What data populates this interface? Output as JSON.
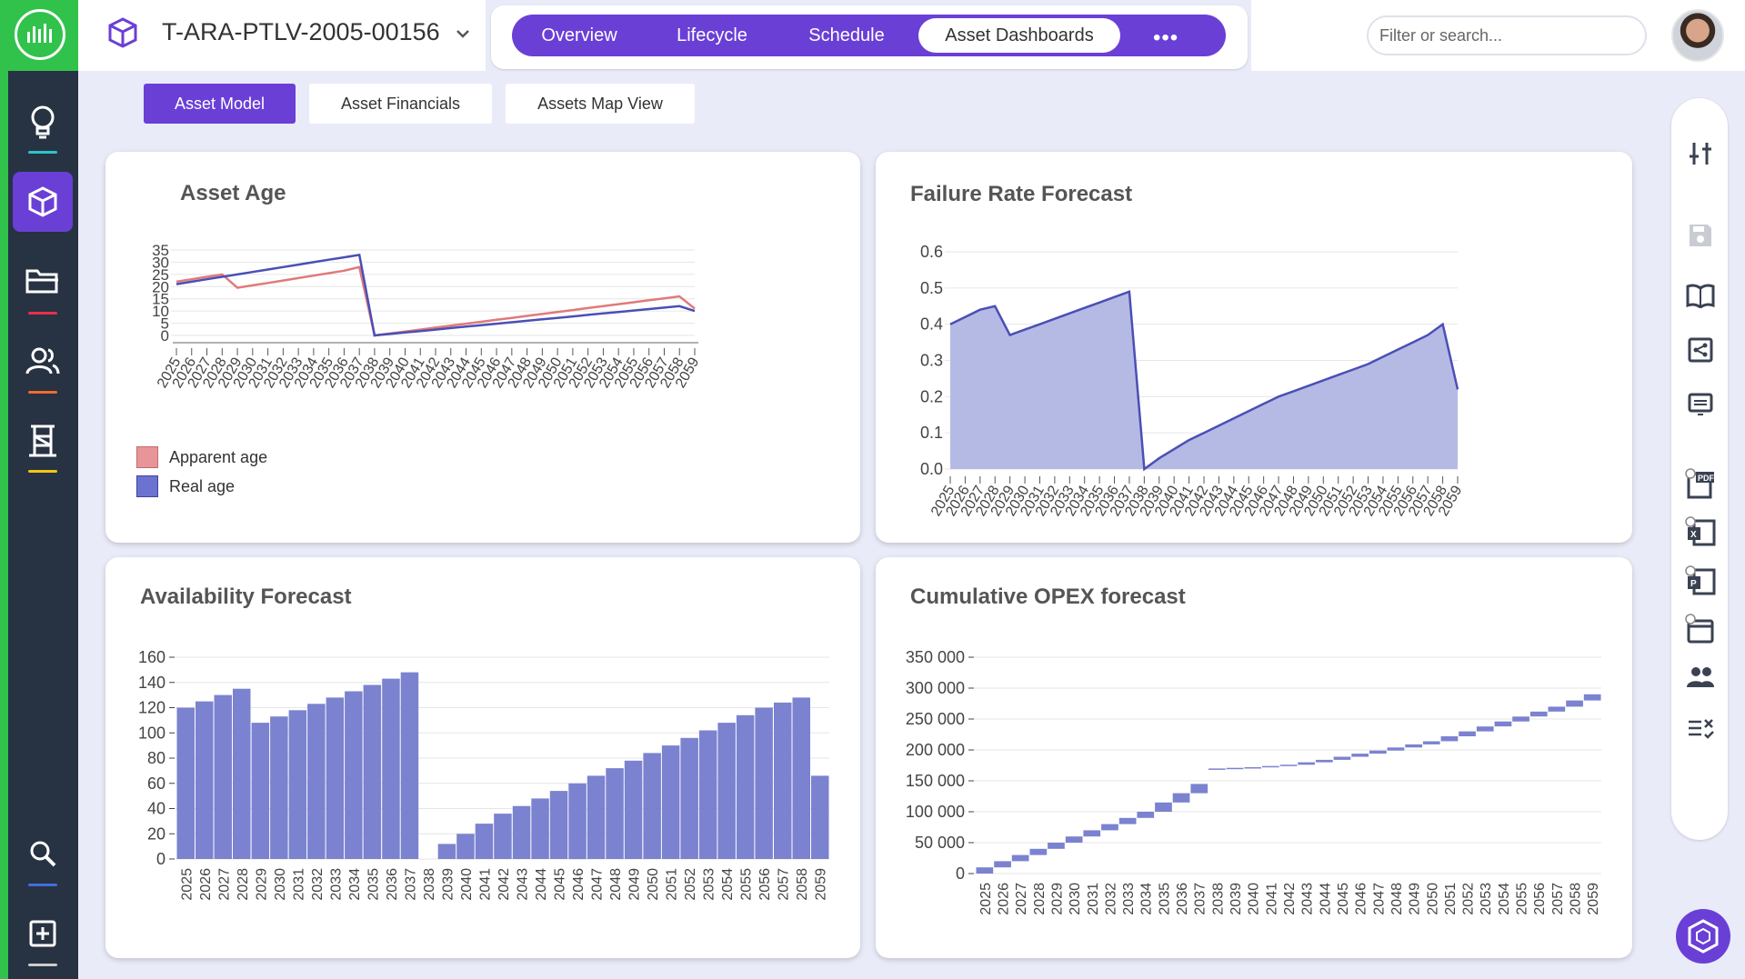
{
  "header": {
    "asset_id": "T-ARA-PTLV-2005-00156",
    "tabs": [
      {
        "label": "Overview",
        "active": false
      },
      {
        "label": "Lifecycle",
        "active": false
      },
      {
        "label": "Schedule",
        "active": false
      },
      {
        "label": "Asset Dashboards",
        "active": true
      }
    ],
    "more_icon": "more-horizontal-icon",
    "search_placeholder": "Filter or search..."
  },
  "sidebar": {
    "items": [
      {
        "icon": "lightbulb-icon",
        "active": false,
        "accent": "#2ec4c8"
      },
      {
        "icon": "cube-icon",
        "active": true,
        "accent": "#6a3fd6"
      },
      {
        "icon": "folder-icon",
        "active": false,
        "accent": "#e8304a"
      },
      {
        "icon": "users-icon",
        "active": false,
        "accent": "#f26a2f"
      },
      {
        "icon": "tower-icon",
        "active": false,
        "accent": "#f5c518"
      },
      {
        "icon": "search-icon",
        "active": false,
        "accent": "#3f6ee0"
      },
      {
        "icon": "plus-square-icon",
        "active": false,
        "accent": "#cccccc"
      }
    ]
  },
  "subtabs": [
    {
      "label": "Asset Model",
      "active": true
    },
    {
      "label": "Asset Financials",
      "active": false
    },
    {
      "label": "Assets Map View",
      "active": false
    }
  ],
  "colors": {
    "accent": "#6a3fd6",
    "sidebar_bg": "#273242",
    "brand_green": "#31c24c",
    "apparent_age": "#e07a7a",
    "real_age": "#4a4fb5",
    "bar_fill": "#7b82cf"
  },
  "toolbar_icons": [
    "sliders-icon",
    "save-icon",
    "book-icon",
    "share-icon",
    "transfer-icon",
    "pdf-icon",
    "excel-icon",
    "powerpoint-icon",
    "calendar-icon",
    "people-icon",
    "checklist-icon"
  ],
  "chart_data": [
    {
      "type": "line",
      "title": "Asset Age",
      "x": [
        2025,
        2026,
        2027,
        2028,
        2029,
        2030,
        2031,
        2032,
        2033,
        2034,
        2035,
        2036,
        2037,
        2038,
        2039,
        2040,
        2041,
        2042,
        2043,
        2044,
        2045,
        2046,
        2047,
        2048,
        2049,
        2050,
        2051,
        2052,
        2053,
        2054,
        2055,
        2056,
        2057,
        2058,
        2059
      ],
      "ylim": [
        0,
        35
      ],
      "yticks": [
        0,
        5,
        10,
        15,
        20,
        25,
        30,
        35
      ],
      "legend": "bottom-left",
      "series": [
        {
          "name": "Apparent age",
          "color": "#e07a7a",
          "values": [
            22,
            23,
            24,
            25,
            19.5,
            20.5,
            21.5,
            22.5,
            23.5,
            24.5,
            25.5,
            26.5,
            28,
            0,
            0.8,
            1.6,
            2.4,
            3.2,
            4,
            4.8,
            5.6,
            6.4,
            7.2,
            8,
            8.8,
            9.6,
            10.4,
            11.2,
            12,
            12.8,
            13.6,
            14.4,
            15.2,
            16,
            11
          ]
        },
        {
          "name": "Real age",
          "color": "#4a4fb5",
          "values": [
            21,
            22,
            23,
            24,
            25,
            26,
            27,
            28,
            29,
            30,
            31,
            32,
            33,
            0,
            0.6,
            1.2,
            1.8,
            2.4,
            3,
            3.6,
            4.2,
            4.8,
            5.4,
            6,
            6.6,
            7.2,
            7.8,
            8.4,
            9,
            9.6,
            10.2,
            10.8,
            11.4,
            12,
            10
          ]
        }
      ]
    },
    {
      "type": "area",
      "title": "Failure Rate Forecast",
      "x": [
        2025,
        2026,
        2027,
        2028,
        2029,
        2030,
        2031,
        2032,
        2033,
        2034,
        2035,
        2036,
        2037,
        2038,
        2039,
        2040,
        2041,
        2042,
        2043,
        2044,
        2045,
        2046,
        2047,
        2048,
        2049,
        2050,
        2051,
        2052,
        2053,
        2054,
        2055,
        2056,
        2057,
        2058,
        2059
      ],
      "ylim": [
        0,
        0.6
      ],
      "yticks": [
        0.0,
        0.1,
        0.2,
        0.3,
        0.4,
        0.5,
        0.6
      ],
      "values": [
        0.4,
        0.42,
        0.44,
        0.45,
        0.37,
        0.385,
        0.4,
        0.415,
        0.43,
        0.445,
        0.46,
        0.475,
        0.49,
        0.0,
        0.03,
        0.055,
        0.08,
        0.1,
        0.12,
        0.14,
        0.16,
        0.18,
        0.2,
        0.215,
        0.23,
        0.245,
        0.26,
        0.275,
        0.29,
        0.31,
        0.33,
        0.35,
        0.37,
        0.4,
        0.22
      ]
    },
    {
      "type": "bar",
      "title": "Availability Forecast",
      "categories": [
        2025,
        2026,
        2027,
        2028,
        2029,
        2030,
        2031,
        2032,
        2033,
        2034,
        2035,
        2036,
        2037,
        2038,
        2039,
        2040,
        2041,
        2042,
        2043,
        2044,
        2045,
        2046,
        2047,
        2048,
        2049,
        2050,
        2051,
        2052,
        2053,
        2054,
        2055,
        2056,
        2057,
        2058,
        2059
      ],
      "ylim": [
        0,
        160
      ],
      "yticks": [
        0,
        20,
        40,
        60,
        80,
        100,
        120,
        140,
        160
      ],
      "values": [
        120,
        125,
        130,
        135,
        108,
        113,
        118,
        123,
        128,
        133,
        138,
        143,
        148,
        0,
        12,
        20,
        28,
        36,
        42,
        48,
        54,
        60,
        66,
        72,
        78,
        84,
        90,
        96,
        102,
        108,
        114,
        120,
        124,
        128,
        66
      ]
    },
    {
      "type": "bar",
      "title": "Cumulative OPEX forecast",
      "categories": [
        2025,
        2026,
        2027,
        2028,
        2029,
        2030,
        2031,
        2032,
        2033,
        2034,
        2035,
        2036,
        2037,
        2038,
        2039,
        2040,
        2041,
        2042,
        2043,
        2044,
        2045,
        2046,
        2047,
        2048,
        2049,
        2050,
        2051,
        2052,
        2053,
        2054,
        2055,
        2056,
        2057,
        2058,
        2059
      ],
      "ylim": [
        0,
        350000
      ],
      "yticks": [
        0,
        50000,
        100000,
        150000,
        200000,
        250000,
        300000,
        350000
      ],
      "ytick_labels": [
        "0",
        "50 000",
        "100 000",
        "150 000",
        "200 000",
        "250 000",
        "300 000",
        "350 000"
      ],
      "ranges": [
        [
          0,
          10000
        ],
        [
          10000,
          20000
        ],
        [
          20000,
          30000
        ],
        [
          30000,
          40000
        ],
        [
          40000,
          50000
        ],
        [
          50000,
          60000
        ],
        [
          60000,
          70000
        ],
        [
          70000,
          80000
        ],
        [
          80000,
          90000
        ],
        [
          90000,
          100000
        ],
        [
          100000,
          115000
        ],
        [
          115000,
          130000
        ],
        [
          130000,
          145000
        ],
        [
          168000,
          170000
        ],
        [
          170000,
          171000
        ],
        [
          171000,
          172000
        ],
        [
          172000,
          174000
        ],
        [
          174000,
          176000
        ],
        [
          176000,
          180000
        ],
        [
          180000,
          184000
        ],
        [
          184000,
          189000
        ],
        [
          189000,
          194000
        ],
        [
          194000,
          199000
        ],
        [
          199000,
          204000
        ],
        [
          204000,
          209000
        ],
        [
          209000,
          214000
        ],
        [
          214000,
          222000
        ],
        [
          222000,
          230000
        ],
        [
          230000,
          238000
        ],
        [
          238000,
          246000
        ],
        [
          246000,
          254000
        ],
        [
          254000,
          262000
        ],
        [
          262000,
          270000
        ],
        [
          270000,
          280000
        ],
        [
          280000,
          290000
        ]
      ]
    }
  ]
}
